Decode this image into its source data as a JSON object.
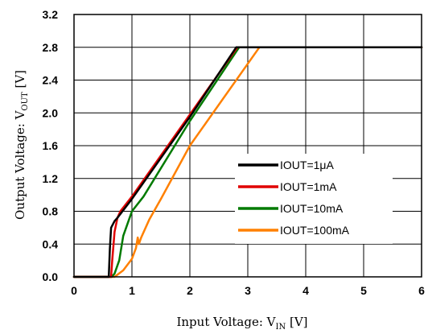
{
  "chart_data": {
    "type": "line",
    "xlabel": {
      "main": "Input Voltage: V",
      "sub": "IN",
      "unit": " [V]"
    },
    "ylabel": {
      "main": "Output Voltage: V",
      "sub": "OUT",
      "unit": " [V]"
    },
    "xlim": [
      0,
      6
    ],
    "ylim": [
      0,
      3.2
    ],
    "xticks": [
      "0",
      "1",
      "2",
      "3",
      "4",
      "5",
      "6"
    ],
    "yticks": [
      "0.0",
      "0.4",
      "0.8",
      "1.2",
      "1.6",
      "2.0",
      "2.4",
      "2.8",
      "3.2"
    ],
    "grid": true,
    "legend_position": "lower-right",
    "series": [
      {
        "name": "IOUT=1μA",
        "color": "#000000",
        "points": [
          [
            0,
            0
          ],
          [
            0.6,
            0
          ],
          [
            0.62,
            0.35
          ],
          [
            0.64,
            0.6
          ],
          [
            0.7,
            0.68
          ],
          [
            0.75,
            0.72
          ],
          [
            1.0,
            0.95
          ],
          [
            2.0,
            1.95
          ],
          [
            2.8,
            2.8
          ],
          [
            6,
            2.8
          ]
        ]
      },
      {
        "name": "IOUT=1mA",
        "color": "#e00000",
        "points": [
          [
            0,
            0
          ],
          [
            0.64,
            0
          ],
          [
            0.66,
            0.2
          ],
          [
            0.7,
            0.55
          ],
          [
            0.75,
            0.72
          ],
          [
            0.8,
            0.8
          ],
          [
            1.0,
            0.98
          ],
          [
            2.0,
            1.98
          ],
          [
            2.82,
            2.8
          ],
          [
            6,
            2.8
          ]
        ]
      },
      {
        "name": "IOUT=10mA",
        "color": "#007a00",
        "points": [
          [
            0,
            0
          ],
          [
            0.65,
            0
          ],
          [
            0.7,
            0.04
          ],
          [
            0.78,
            0.2
          ],
          [
            0.85,
            0.5
          ],
          [
            0.95,
            0.7
          ],
          [
            1.0,
            0.8
          ],
          [
            1.2,
            0.98
          ],
          [
            2.0,
            1.9
          ],
          [
            2.85,
            2.8
          ],
          [
            6,
            2.8
          ]
        ]
      },
      {
        "name": "IOUT=100mA",
        "color": "#ff8000",
        "points": [
          [
            0,
            0
          ],
          [
            0.62,
            0
          ],
          [
            0.7,
            0
          ],
          [
            0.85,
            0.08
          ],
          [
            1.0,
            0.22
          ],
          [
            1.07,
            0.35
          ],
          [
            1.1,
            0.48
          ],
          [
            1.12,
            0.4
          ],
          [
            1.16,
            0.48
          ],
          [
            1.3,
            0.7
          ],
          [
            1.5,
            0.95
          ],
          [
            2.0,
            1.6
          ],
          [
            3.2,
            2.8
          ],
          [
            6,
            2.8
          ]
        ]
      }
    ]
  }
}
